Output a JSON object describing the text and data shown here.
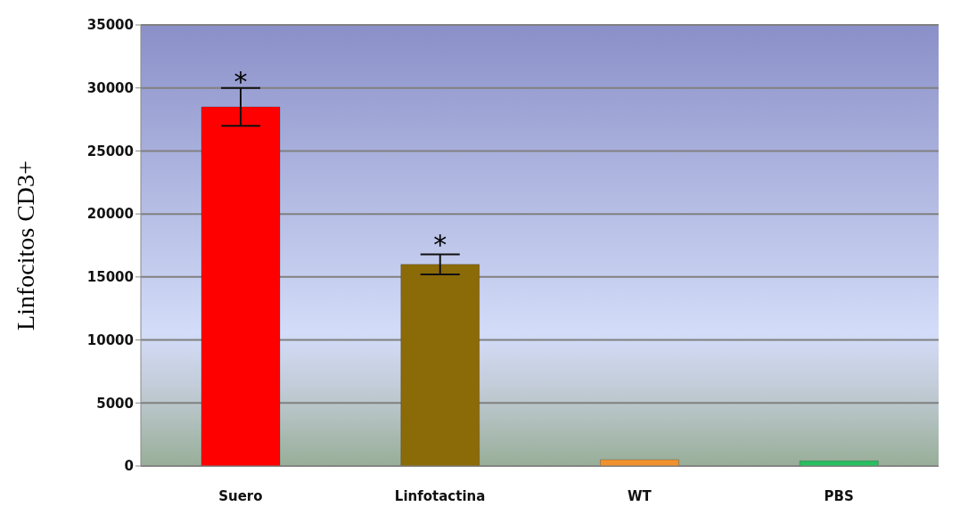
{
  "chart_data": {
    "type": "bar",
    "ylabel": "Linfocitos  CD3+",
    "categories": [
      "Suero",
      "Linfotactina",
      "WT",
      "PBS"
    ],
    "values": [
      28500,
      16000,
      500,
      400
    ],
    "colors": [
      "#ff0000",
      "#8b6a08",
      "#f0922e",
      "#27c060"
    ],
    "errors": [
      1500,
      800,
      null,
      null
    ],
    "ylim": [
      0,
      35000
    ],
    "yticks": [
      0,
      5000,
      10000,
      15000,
      20000,
      25000,
      30000,
      35000
    ],
    "grid": "y",
    "annotations": [
      {
        "text": "*",
        "x": "Suero",
        "y": 29800
      },
      {
        "text": "*",
        "x": "Linfotactina",
        "y": 16800
      }
    ]
  }
}
